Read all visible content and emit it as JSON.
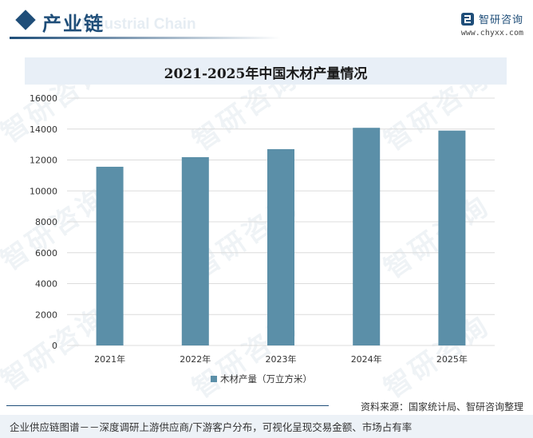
{
  "header": {
    "title": "产业链",
    "watermark": "Industrial Chain",
    "brand_name": "智研咨询",
    "brand_url": "www.chyxx.com"
  },
  "colors": {
    "bar": "#5b8fa8",
    "brand": "#1f4e79",
    "grid": "#dcdcdc"
  },
  "chart_data": {
    "type": "bar",
    "title": "2021-2025年中国木材产量情况",
    "categories": [
      "2021年",
      "2022年",
      "2023年",
      "2024年",
      "2025年"
    ],
    "series": [
      {
        "name": "木材产量（万立方米）",
        "values": [
          11560,
          12180,
          12700,
          14080,
          13900
        ]
      }
    ],
    "yticks": [
      "0",
      "2000",
      "4000",
      "6000",
      "8000",
      "10000",
      "12000",
      "14000",
      "16000"
    ],
    "ylim": [
      0,
      16000
    ],
    "grid": true,
    "legend": "bottom-center"
  },
  "footer": {
    "source": "资料来源：国家统计局、智研咨询整理",
    "tagline": "企业供应链图谱－－深度调研上游供应商/下游客户分布，可视化呈现交易金额、市场占有率"
  }
}
